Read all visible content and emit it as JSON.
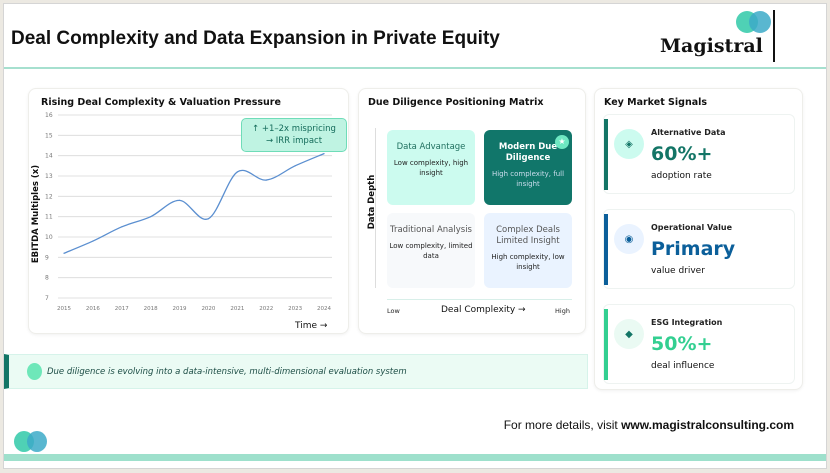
{
  "header": {
    "title": "Deal Complexity and Data Expansion in Private Equity",
    "logo_text": "Magistral"
  },
  "chart_data": {
    "type": "line",
    "title": "Rising Deal Complexity & Valuation Pressure",
    "xlabel": "Time →",
    "ylabel": "EBITDA Multiples (x)",
    "x": [
      "2015",
      "2016",
      "2017",
      "2018",
      "2019",
      "2020",
      "2021",
      "2022",
      "2023",
      "2024"
    ],
    "values": [
      9.2,
      9.8,
      10.5,
      11.0,
      11.8,
      10.9,
      13.2,
      12.8,
      13.5,
      14.1
    ],
    "ylim": [
      7,
      16
    ],
    "yticks": [
      "7",
      "8",
      "9",
      "10",
      "11",
      "12",
      "13",
      "14",
      "15",
      "16"
    ],
    "grid": true,
    "annotation": [
      "↑ +1–2x mispricing",
      "→ IRR impact"
    ],
    "color": "#5b8fd0"
  },
  "matrix": {
    "title": "Due Diligence Positioning Matrix",
    "ylabel": "Data Depth",
    "xlabel": "Deal Complexity →",
    "low": "Low",
    "high": "High",
    "quadrants": [
      {
        "title": "Data Advantage",
        "sub": "Low complexity, high insight"
      },
      {
        "title": "Modern Due Diligence",
        "sub": "High complexity, full insight"
      },
      {
        "title": "Traditional Analysis",
        "sub": "Low complexity, limited data"
      },
      {
        "title": "Complex Deals Limited Insight",
        "sub": "High complexity, low insight"
      }
    ]
  },
  "signals": {
    "title": "Key Market Signals",
    "items": [
      {
        "label": "Alternative Data",
        "value": "60%+",
        "sub": "adoption rate",
        "color": "#137566",
        "icon": "diamond-icon"
      },
      {
        "label": "Operational Value",
        "value": "Primary",
        "sub": "value driver",
        "color": "#0b5f9a",
        "icon": "target-icon"
      },
      {
        "label": "ESG Integration",
        "value": "50%+",
        "sub": "deal influence",
        "color": "#33cf91",
        "icon": "leaf-diamond-icon"
      }
    ]
  },
  "banner": {
    "text": "Due diligence is evolving into a data-intensive, multi-dimensional evaluation system"
  },
  "footer": {
    "prefix": "For more details, visit ",
    "url": "www.magistralconsulting.com"
  }
}
